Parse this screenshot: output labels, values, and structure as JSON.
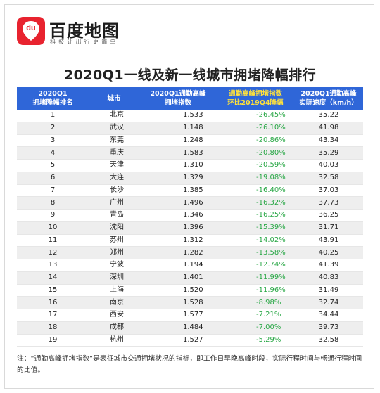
{
  "brand": {
    "name": "百度地图",
    "slogan": "科技让出行更简单",
    "icon_text": "du",
    "color": "#e8232f"
  },
  "chart_data": {
    "type": "table",
    "title": "2020Q1一线及新一线城市拥堵降幅排行",
    "columns": [
      {
        "line1": "2020Q1",
        "line2": "拥堵降幅排名"
      },
      {
        "line1": "城市",
        "line2": ""
      },
      {
        "line1": "2020Q1通勤高峰",
        "line2": "拥堵指数"
      },
      {
        "line1": "通勤高峰拥堵指数",
        "line2": "环比2019Q4降幅"
      },
      {
        "line1": "2020Q1通勤高峰",
        "line2": "实际速度（km/h）"
      }
    ],
    "rows": [
      {
        "rank": "1",
        "city": "北京",
        "index": "1.533",
        "change": "-26.45%",
        "speed": "35.22"
      },
      {
        "rank": "2",
        "city": "武汉",
        "index": "1.148",
        "change": "-26.10%",
        "speed": "41.98"
      },
      {
        "rank": "3",
        "city": "东莞",
        "index": "1.248",
        "change": "-20.86%",
        "speed": "43.34"
      },
      {
        "rank": "4",
        "city": "重庆",
        "index": "1.583",
        "change": "-20.80%",
        "speed": "35.29"
      },
      {
        "rank": "5",
        "city": "天津",
        "index": "1.310",
        "change": "-20.59%",
        "speed": "40.03"
      },
      {
        "rank": "6",
        "city": "大连",
        "index": "1.329",
        "change": "-19.08%",
        "speed": "32.58"
      },
      {
        "rank": "7",
        "city": "长沙",
        "index": "1.385",
        "change": "-16.40%",
        "speed": "37.03"
      },
      {
        "rank": "8",
        "city": "广州",
        "index": "1.496",
        "change": "-16.32%",
        "speed": "37.73"
      },
      {
        "rank": "9",
        "city": "青岛",
        "index": "1.346",
        "change": "-16.25%",
        "speed": "36.25"
      },
      {
        "rank": "10",
        "city": "沈阳",
        "index": "1.396",
        "change": "-15.39%",
        "speed": "31.71"
      },
      {
        "rank": "11",
        "city": "苏州",
        "index": "1.312",
        "change": "-14.02%",
        "speed": "43.91"
      },
      {
        "rank": "12",
        "city": "郑州",
        "index": "1.282",
        "change": "-13.58%",
        "speed": "40.25"
      },
      {
        "rank": "13",
        "city": "宁波",
        "index": "1.194",
        "change": "-12.74%",
        "speed": "41.39"
      },
      {
        "rank": "14",
        "city": "深圳",
        "index": "1.401",
        "change": "-11.99%",
        "speed": "40.83"
      },
      {
        "rank": "15",
        "city": "上海",
        "index": "1.520",
        "change": "-11.96%",
        "speed": "31.49"
      },
      {
        "rank": "16",
        "city": "南京",
        "index": "1.528",
        "change": "-8.98%",
        "speed": "32.74"
      },
      {
        "rank": "17",
        "city": "西安",
        "index": "1.577",
        "change": "-7.21%",
        "speed": "34.44"
      },
      {
        "rank": "18",
        "city": "成都",
        "index": "1.484",
        "change": "-7.00%",
        "speed": "39.73"
      },
      {
        "rank": "19",
        "city": "杭州",
        "index": "1.527",
        "change": "-5.29%",
        "speed": "32.58"
      }
    ],
    "colors": {
      "header_bg": "#2f66d8",
      "header_highlight": "#ffe23c",
      "change_text": "#28a745",
      "stripe": "#eeeeee"
    }
  },
  "note": "注：“通勤高峰拥堵指数”是表征城市交通拥堵状况的指标，即工作日早晚高峰时段，实际行程时间与畅通行程时间的比值。"
}
